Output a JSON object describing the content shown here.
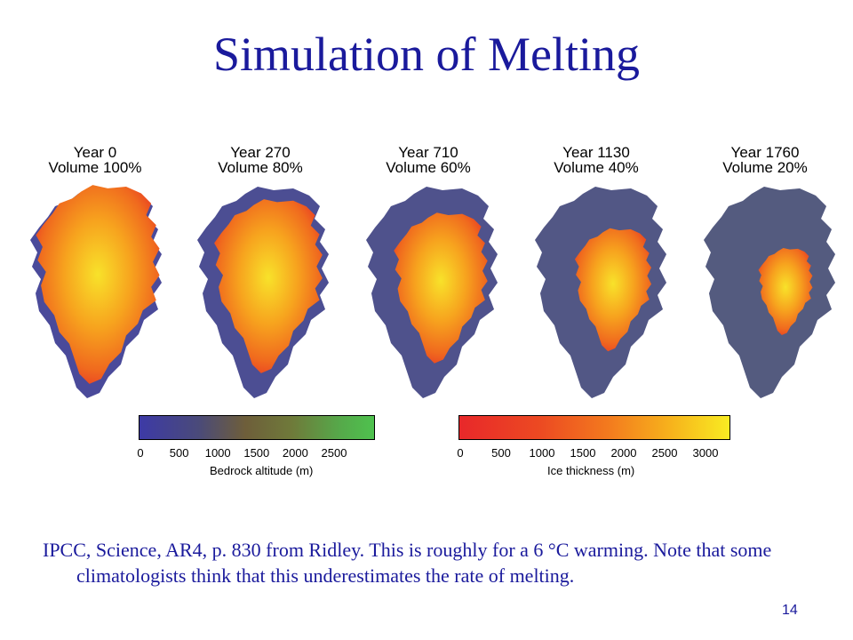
{
  "slide": {
    "title": "Simulation of Melting",
    "caption": "IPCC, Science, AR4, p. 830 from Ridley. This is roughly for a 6 °C warming. Note that some climatologists think that this underestimates the rate of melting.",
    "page_number": "14"
  },
  "maps": [
    {
      "year": "Year 0",
      "volume": "Volume 100%",
      "volume_fraction": 1.0
    },
    {
      "year": "Year 270",
      "volume": "Volume 80%",
      "volume_fraction": 0.8
    },
    {
      "year": "Year 710",
      "volume": "Volume 60%",
      "volume_fraction": 0.6
    },
    {
      "year": "Year 1130",
      "volume": "Volume 40%",
      "volume_fraction": 0.4
    },
    {
      "year": "Year 1760",
      "volume": "Volume 20%",
      "volume_fraction": 0.2
    }
  ],
  "scales": {
    "bedrock": {
      "label": "Bedrock altitude (m)",
      "ticks": [
        "0",
        "500",
        "1000",
        "1500",
        "2000",
        "2500"
      ],
      "colors": [
        "#3d3aa6",
        "#4a4a7a",
        "#6e5e3a",
        "#6f7a3a",
        "#56a84a",
        "#4ec24e"
      ]
    },
    "ice": {
      "label": "Ice thickness (m)",
      "ticks": [
        "0",
        "500",
        "1000",
        "1500",
        "2000",
        "2500",
        "3000"
      ],
      "colors": [
        "#e8282a",
        "#ec4a22",
        "#f37a1e",
        "#f7b21c",
        "#f8ec22"
      ]
    }
  },
  "colors": {
    "title": "#1a1a9c",
    "land": "#4a4a9a",
    "land_green": "#6f8a3a"
  }
}
